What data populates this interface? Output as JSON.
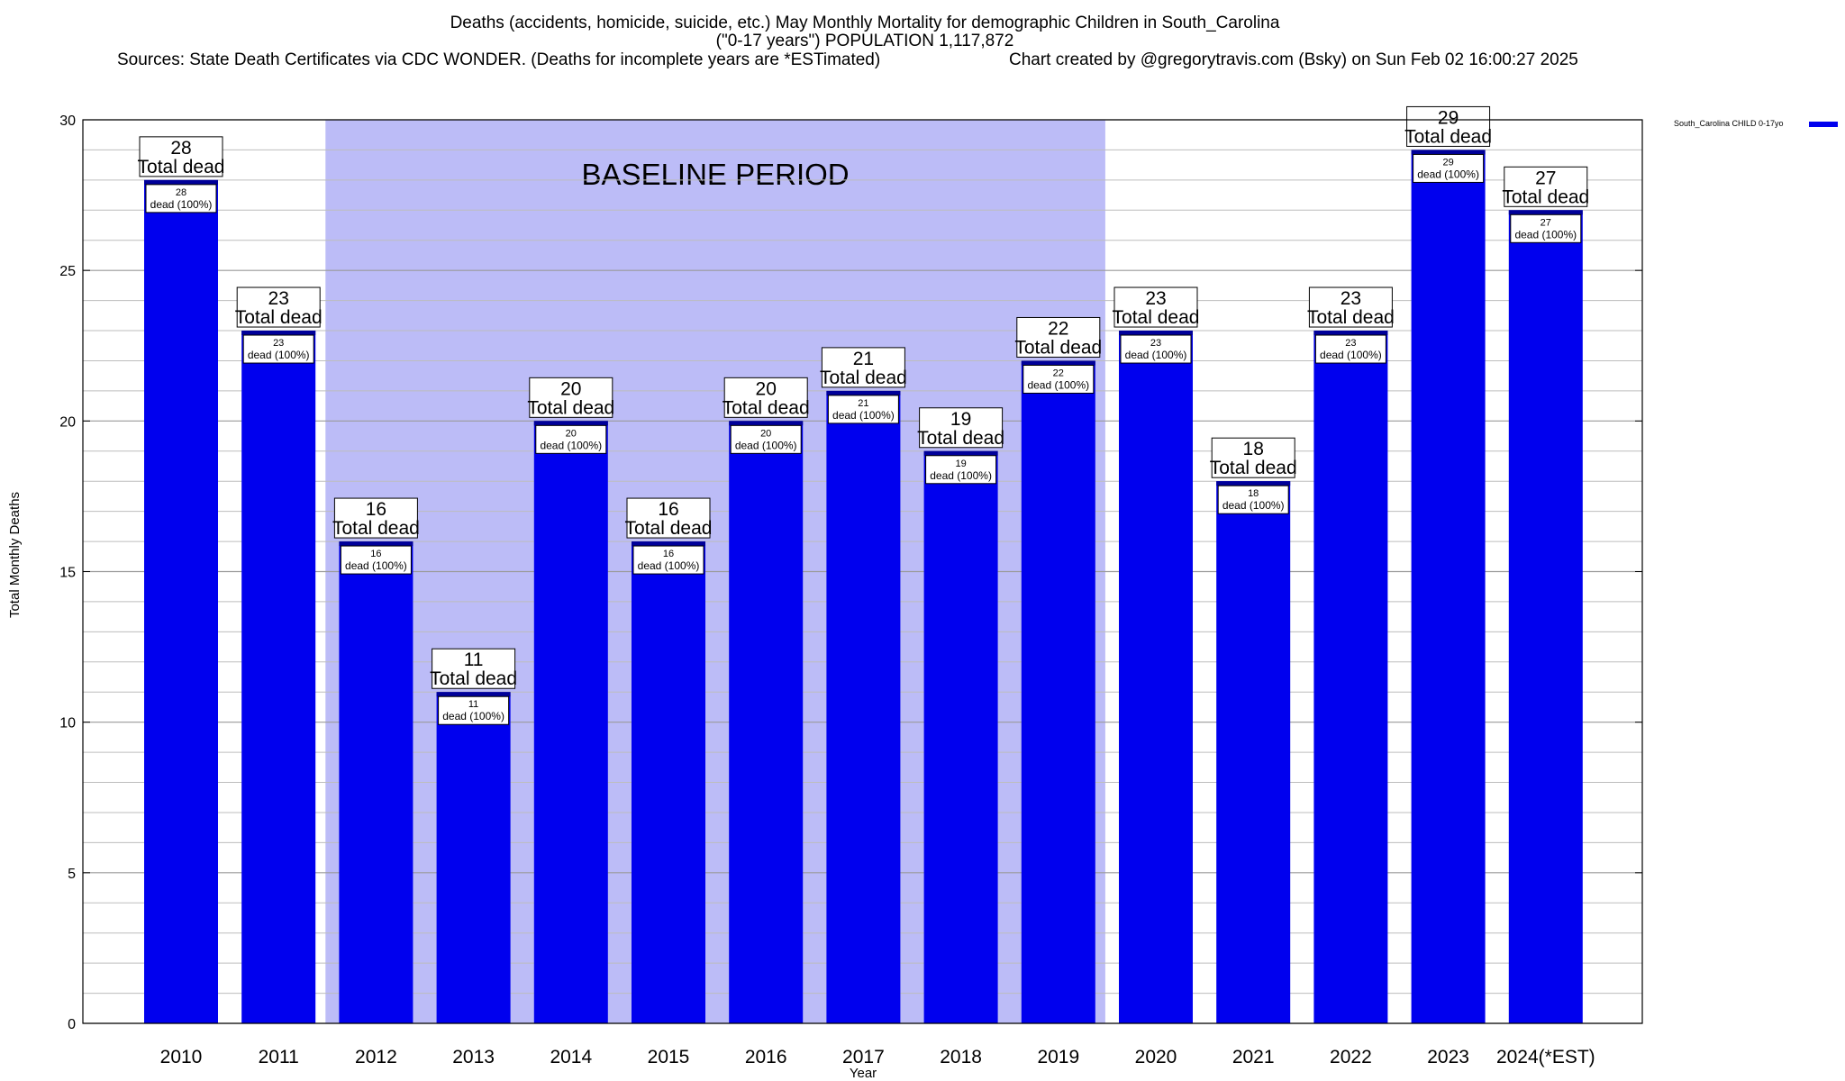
{
  "header": {
    "title_line1": "Deaths (accidents, homicide, suicide, etc.) May Monthly Mortality for demographic Children in South_Carolina",
    "title_line2": "(\"0-17 years\") POPULATION 1,117,872",
    "sources": "Sources: State Death Certificates via CDC WONDER. (Deaths for incomplete years are *ESTimated)",
    "credit": "Chart created by @gregorytravis.com (Bsky) on Sun Feb 02 16:00:27 2025"
  },
  "chart_data": {
    "type": "bar",
    "xlabel": "Year",
    "ylabel": "Total Monthly Deaths",
    "ylim": [
      0,
      30
    ],
    "y_ticks": [
      0,
      5,
      10,
      15,
      20,
      25,
      30
    ],
    "grid": true,
    "legend": {
      "position": "top-right",
      "label": "South_Carolina CHILD 0-17yo"
    },
    "categories": [
      "2010",
      "2011",
      "2012",
      "2013",
      "2014",
      "2015",
      "2016",
      "2017",
      "2018",
      "2019",
      "2020",
      "2021",
      "2022",
      "2023",
      "2024(*EST)"
    ],
    "series": [
      {
        "name": "South_Carolina CHILD 0-17yo",
        "values": [
          28,
          23,
          16,
          11,
          20,
          16,
          20,
          21,
          19,
          22,
          23,
          18,
          23,
          29,
          27
        ]
      }
    ],
    "total_label_suffix": "Total dead",
    "bar_label_suffix": "dead (100%)",
    "baseline": {
      "label": "BASELINE PERIOD",
      "from": "2012",
      "to": "2019"
    }
  },
  "colors": {
    "bar": "#0000ee",
    "bar_cap": "#000099",
    "baseline_shade": "#bcbcf7",
    "grid": "#bdbdbd"
  }
}
